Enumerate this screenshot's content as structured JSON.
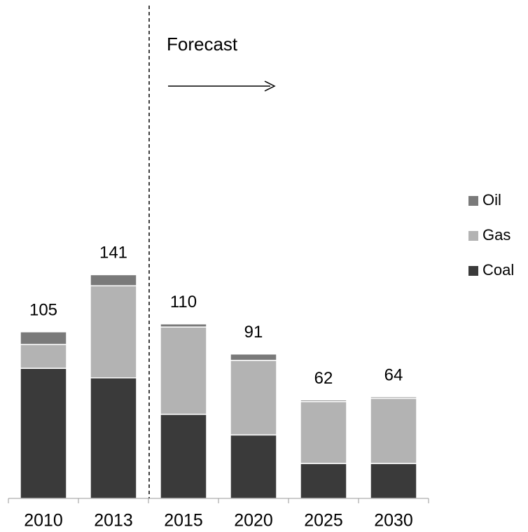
{
  "chart_data": {
    "type": "stacked_bar",
    "annotation": "Forecast",
    "categories": [
      "2010",
      "2013",
      "2015",
      "2020",
      "2025",
      "2030"
    ],
    "series": [
      {
        "name": "Coal",
        "color": "#3a3a3a",
        "values": [
          82,
          76,
          53,
          40,
          22,
          22
        ]
      },
      {
        "name": "Gas",
        "color": "#b3b3b3",
        "values": [
          15,
          58,
          55,
          47,
          39,
          41
        ]
      },
      {
        "name": "Oil",
        "color": "#7a7a7a",
        "values": [
          8,
          7,
          2,
          4,
          1,
          1
        ]
      }
    ],
    "totals": [
      105,
      141,
      110,
      91,
      62,
      64
    ],
    "ylim": [
      0,
      150
    ],
    "legend": "right"
  }
}
